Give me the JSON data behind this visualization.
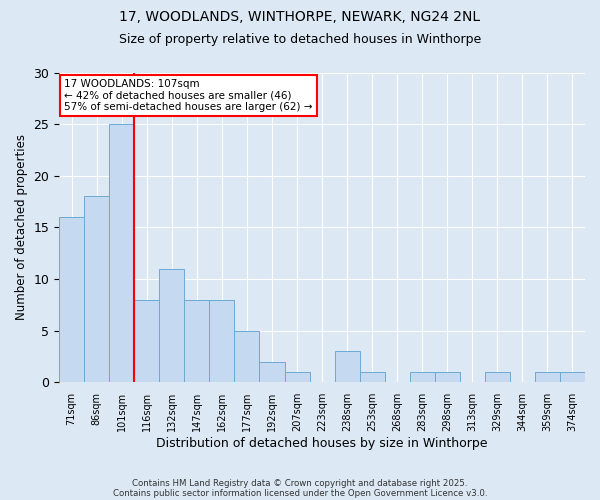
{
  "title1": "17, WOODLANDS, WINTHORPE, NEWARK, NG24 2NL",
  "title2": "Size of property relative to detached houses in Winthorpe",
  "xlabel": "Distribution of detached houses by size in Winthorpe",
  "ylabel": "Number of detached properties",
  "categories": [
    "71sqm",
    "86sqm",
    "101sqm",
    "116sqm",
    "132sqm",
    "147sqm",
    "162sqm",
    "177sqm",
    "192sqm",
    "207sqm",
    "223sqm",
    "238sqm",
    "253sqm",
    "268sqm",
    "283sqm",
    "298sqm",
    "313sqm",
    "329sqm",
    "344sqm",
    "359sqm",
    "374sqm"
  ],
  "values": [
    16,
    18,
    25,
    8,
    11,
    8,
    8,
    5,
    2,
    1,
    0,
    3,
    1,
    0,
    1,
    1,
    0,
    1,
    0,
    1,
    1
  ],
  "bar_color": "#c5d9f0",
  "bar_edge_color": "#6aaad4",
  "vline_x": 2.5,
  "vline_color": "red",
  "annotation_title": "17 WOODLANDS: 107sqm",
  "annotation_line1": "← 42% of detached houses are smaller (46)",
  "annotation_line2": "57% of semi-detached houses are larger (62) →",
  "annotation_box_color": "white",
  "annotation_box_edge": "red",
  "ylim": [
    0,
    30
  ],
  "yticks": [
    0,
    5,
    10,
    15,
    20,
    25,
    30
  ],
  "footnote1": "Contains HM Land Registry data © Crown copyright and database right 2025.",
  "footnote2": "Contains public sector information licensed under the Open Government Licence v3.0.",
  "fig_bg": "#dce9f5",
  "plot_bg": "#dce9f5"
}
